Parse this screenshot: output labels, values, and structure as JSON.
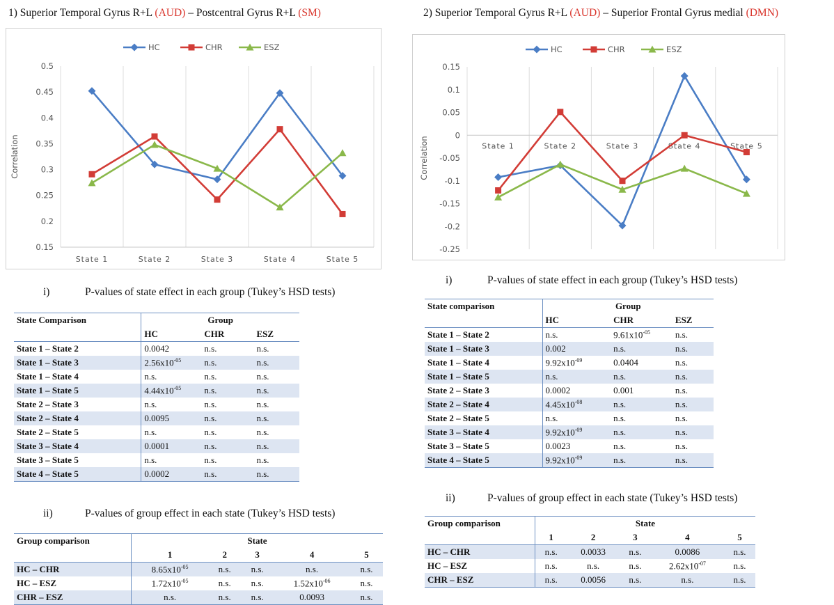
{
  "colors": {
    "HC": "#4a7dc5",
    "CHR": "#d23c36",
    "ESZ": "#8ab84a",
    "accent_red": "#d9342b",
    "table_rule": "#6d90c2",
    "table_shade": "#dde5f2"
  },
  "panel1": {
    "title_a": "1) Superior Temporal Gyrus R+L ",
    "title_b": "(AUD)",
    "title_c": " – Postcentral Gyrus R+L ",
    "title_d": "(SM)",
    "sub1_num": "i)",
    "sub1_text": "P-values of state effect in each group (Tukey’s HSD tests)",
    "sub2_num": "ii)",
    "sub2_text": "P-values of group effect in each state (Tukey’s HSD tests)",
    "table1": {
      "h_comp": "State Comparison",
      "h_group": "Group",
      "cols": [
        "HC",
        "CHR",
        "ESZ"
      ],
      "rows": [
        {
          "label": "State 1 – State 2",
          "hc": "0.0042",
          "chr": "n.s.",
          "esz": "n.s."
        },
        {
          "label": "State 1 – State 3",
          "hc": "2.56x10",
          "hc_exp": "-05",
          "chr": "n.s.",
          "esz": "n.s."
        },
        {
          "label": "State 1 – State 4",
          "hc": "n.s.",
          "chr": "n.s.",
          "esz": "n.s."
        },
        {
          "label": "State 1 – State 5",
          "hc": "4.44x10",
          "hc_exp": "-05",
          "chr": "n.s.",
          "esz": "n.s."
        },
        {
          "label": "State 2 – State 3",
          "hc": "n.s.",
          "chr": "n.s.",
          "esz": "n.s."
        },
        {
          "label": "State 2 – State 4",
          "hc": "0.0095",
          "chr": "n.s.",
          "esz": "n.s."
        },
        {
          "label": "State 2 – State 5",
          "hc": "n.s.",
          "chr": "n.s.",
          "esz": "n.s."
        },
        {
          "label": "State 3 – State 4",
          "hc": "0.0001",
          "chr": "n.s.",
          "esz": "n.s."
        },
        {
          "label": "State 3 – State 5",
          "hc": "n.s.",
          "chr": "n.s.",
          "esz": "n.s."
        },
        {
          "label": "State 4 – State 5",
          "hc": "0.0002",
          "chr": "n.s.",
          "esz": "n.s."
        }
      ]
    },
    "table2": {
      "h_comp": "Group comparison",
      "h_state": "State",
      "cols": [
        "1",
        "2",
        "3",
        "4",
        "5"
      ],
      "rows": [
        {
          "label": "HC – CHR",
          "v": [
            "8.65x10",
            "n.s.",
            "n.s.",
            "n.s.",
            "n.s."
          ],
          "exp": [
            "-05",
            "",
            "",
            "",
            ""
          ]
        },
        {
          "label": "HC – ESZ",
          "v": [
            "1.72x10",
            "n.s.",
            "n.s.",
            "1.52x10",
            "n.s."
          ],
          "exp": [
            "-05",
            "",
            "",
            "-06",
            ""
          ]
        },
        {
          "label": "CHR – ESZ",
          "v": [
            "n.s.",
            "n.s.",
            "n.s.",
            "0.0093",
            "n.s."
          ],
          "exp": [
            "",
            "",
            "",
            "",
            ""
          ]
        }
      ]
    }
  },
  "panel2": {
    "title_a": "2) Superior Temporal Gyrus R+L ",
    "title_b": "(AUD)",
    "title_c": " – Superior Frontal Gyrus medial ",
    "title_d": "(DMN)",
    "sub1_num": "i)",
    "sub1_text": "P-values of state effect in each group (Tukey’s HSD tests)",
    "sub2_num": "ii)",
    "sub2_text": "P-values of group effect in each state (Tukey’s HSD tests)",
    "table1": {
      "h_comp": "State comparison",
      "h_group": "Group",
      "cols": [
        "HC",
        "CHR",
        "ESZ"
      ],
      "rows": [
        {
          "label": "State 1 – State 2",
          "hc": "n.s.",
          "chr": "9.61x10",
          "chr_exp": "-05",
          "esz": "n.s."
        },
        {
          "label": "State 1 – State 3",
          "hc": "0.002",
          "chr": "n.s.",
          "esz": "n.s."
        },
        {
          "label": "State 1 – State 4",
          "hc": "9.92x10",
          "hc_exp": "-09",
          "chr": "0.0404",
          "esz": "n.s."
        },
        {
          "label": "State 1 – State 5",
          "hc": "n.s.",
          "chr": "n.s.",
          "esz": "n.s."
        },
        {
          "label": "State 2 – State 3",
          "hc": "0.0002",
          "chr": "0.001",
          "esz": "n.s."
        },
        {
          "label": "State 2 – State 4",
          "hc": "4.45x10",
          "hc_exp": "-08",
          "chr": "n.s.",
          "esz": "n.s."
        },
        {
          "label": "State 2 – State 5",
          "hc": "n.s.",
          "chr": "n.s.",
          "esz": "n.s."
        },
        {
          "label": "State 3 – State 4",
          "hc": "9.92x10",
          "hc_exp": "-09",
          "chr": "n.s.",
          "esz": "n.s."
        },
        {
          "label": "State 3 – State 5",
          "hc": "0.0023",
          "chr": "n.s.",
          "esz": "n.s."
        },
        {
          "label": "State 4 – State 5",
          "hc": "9.92x10",
          "hc_exp": "-09",
          "chr": "n.s.",
          "esz": "n.s."
        }
      ]
    },
    "table2": {
      "h_comp": "Group comparison",
      "h_state": "State",
      "cols": [
        "1",
        "2",
        "3",
        "4",
        "5"
      ],
      "rows": [
        {
          "label": "HC – CHR",
          "v": [
            "n.s.",
            "0.0033",
            "n.s.",
            "0.0086",
            "n.s."
          ],
          "exp": [
            "",
            "",
            "",
            "",
            ""
          ]
        },
        {
          "label": "HC – ESZ",
          "v": [
            "n.s.",
            "n.s.",
            "n.s.",
            "2.62x10",
            "n.s."
          ],
          "exp": [
            "",
            "",
            "",
            "-07",
            ""
          ]
        },
        {
          "label": "CHR – ESZ",
          "v": [
            "n.s.",
            "0.0056",
            "n.s.",
            "n.s.",
            "n.s."
          ],
          "exp": [
            "",
            "",
            "",
            "",
            ""
          ]
        }
      ]
    }
  },
  "chart_data": [
    {
      "type": "line",
      "ylabel": "Correlation",
      "categories": [
        "State 1",
        "State 2",
        "State 3",
        "State 4",
        "State 5"
      ],
      "ylim": [
        0.15,
        0.5
      ],
      "yticks": [
        0.15,
        0.2,
        0.25,
        0.3,
        0.35,
        0.4,
        0.45,
        0.5
      ],
      "ytick_labels": [
        "0.15",
        "0.2",
        "0.25",
        "0.3",
        "0.35",
        "0.4",
        "0.45",
        "0.5"
      ],
      "grid": "vertical",
      "legend": "top-center",
      "series": [
        {
          "name": "HC",
          "values": [
            0.452,
            0.31,
            0.281,
            0.448,
            0.288
          ],
          "marker": "diamond"
        },
        {
          "name": "CHR",
          "values": [
            0.291,
            0.364,
            0.242,
            0.378,
            0.214
          ],
          "marker": "square"
        },
        {
          "name": "ESZ",
          "values": [
            0.274,
            0.348,
            0.302,
            0.227,
            0.332
          ],
          "marker": "triangle"
        }
      ]
    },
    {
      "type": "line",
      "ylabel": "Correlation",
      "categories": [
        "State 1",
        "State 2",
        "State 3",
        "State 4",
        "State 5"
      ],
      "ylim": [
        -0.25,
        0.15
      ],
      "yticks": [
        -0.25,
        -0.2,
        -0.15,
        -0.1,
        -0.05,
        0,
        0.05,
        0.1,
        0.15
      ],
      "ytick_labels": [
        "-0.25",
        "-0.2",
        "-0.15",
        "-0.1",
        "-0.05",
        "0",
        "0.05",
        "0.1",
        "0.15"
      ],
      "grid": "vertical",
      "legend": "top-center",
      "category_labels_on_zero_line": true,
      "series": [
        {
          "name": "HC",
          "values": [
            -0.092,
            -0.066,
            -0.198,
            0.13,
            -0.097
          ],
          "marker": "diamond"
        },
        {
          "name": "CHR",
          "values": [
            -0.121,
            0.051,
            -0.1,
            0.0,
            -0.037
          ],
          "marker": "square"
        },
        {
          "name": "ESZ",
          "values": [
            -0.136,
            -0.064,
            -0.119,
            -0.073,
            -0.128
          ],
          "marker": "triangle"
        }
      ]
    }
  ]
}
